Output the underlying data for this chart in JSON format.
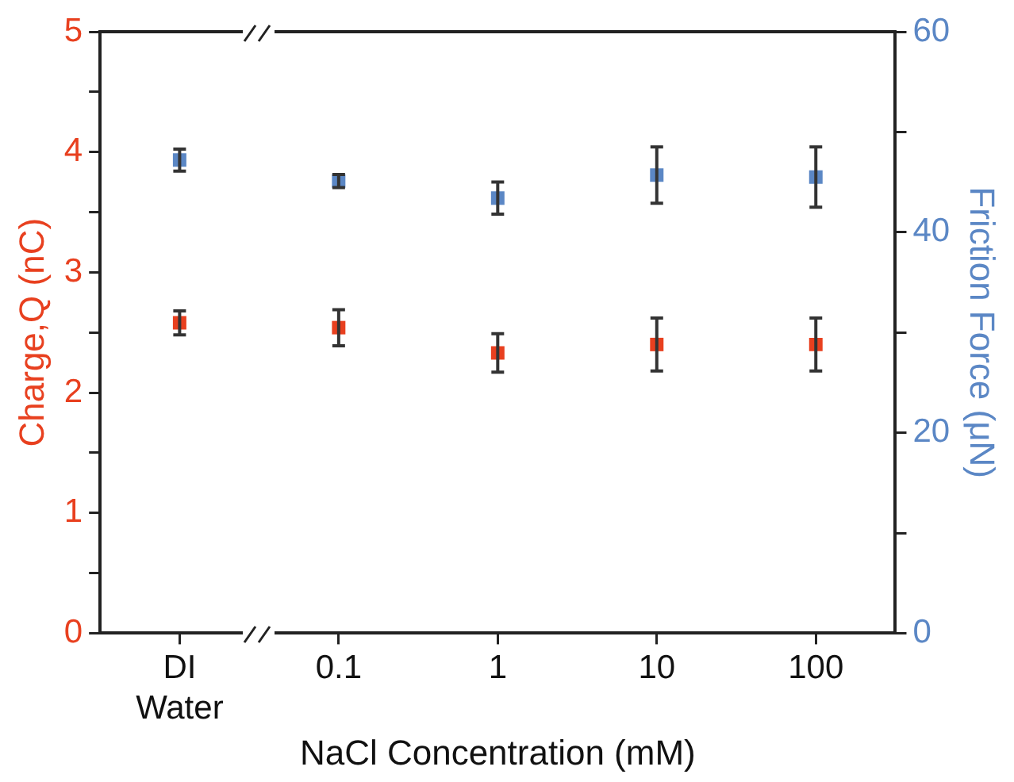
{
  "chart_data": {
    "type": "scatter",
    "xlabel": "NaCl Concentration (mM)",
    "ylabel": "Charge,Q (nC)",
    "y2label": "Friction Force (μN)",
    "categories": [
      "DI Water",
      "0.1",
      "1",
      "10",
      "100"
    ],
    "series": [
      {
        "color": "#e8401f",
        "values": [
          2.58,
          2.54,
          2.33,
          2.4,
          2.4
        ],
        "errors": [
          0.1,
          0.15,
          0.16,
          0.22,
          0.22
        ]
      },
      {
        "color": "#5b87c5",
        "axis": "y2",
        "values": [
          47.2,
          45.1,
          43.4,
          45.7,
          45.5
        ],
        "errors": [
          1.1,
          0.65,
          1.6,
          2.8,
          3.0
        ]
      }
    ],
    "ylim": [
      0,
      5
    ],
    "yticks": [
      0,
      {
        "value": 0.5,
        "label": null
      },
      1,
      {
        "value": 1.5,
        "label": null
      },
      2,
      {
        "value": 2.5,
        "label": null
      },
      3,
      {
        "value": 3.5,
        "label": null
      },
      4,
      {
        "value": 4.5,
        "label": null
      },
      5
    ],
    "y2lim": [
      0,
      60
    ],
    "y2ticks": [
      0,
      {
        "value": 10,
        "label": null
      },
      20,
      {
        "value": 30,
        "label": null
      },
      40,
      {
        "value": 50,
        "label": null
      },
      60
    ],
    "marker": "square",
    "grid": false,
    "legend": false
  }
}
